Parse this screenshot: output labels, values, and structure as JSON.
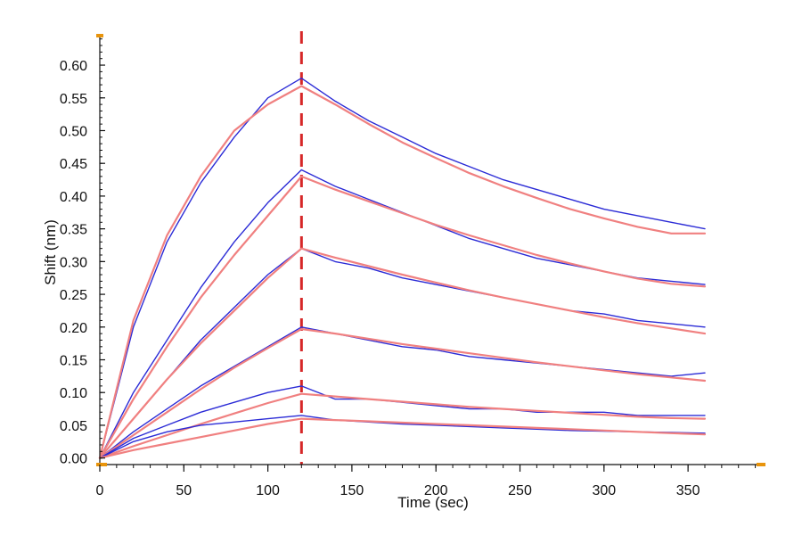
{
  "chart_data": {
    "type": "line",
    "xlabel": "Time (sec)",
    "ylabel": "Shift (nm)",
    "xlim": [
      0,
      395
    ],
    "ylim": [
      -0.01,
      0.645
    ],
    "x_ticks": [
      0,
      50,
      100,
      150,
      200,
      250,
      300,
      350
    ],
    "x_tick_labels": [
      "0",
      "50",
      "100",
      "150",
      "200",
      "250",
      "300",
      "350"
    ],
    "y_ticks": [
      0.0,
      0.05,
      0.1,
      0.15,
      0.2,
      0.25,
      0.3,
      0.35,
      0.4,
      0.45,
      0.5,
      0.55,
      0.6
    ],
    "y_tick_labels": [
      "0.00",
      "0.05",
      "0.10",
      "0.15",
      "0.20",
      "0.25",
      "0.30",
      "0.35",
      "0.40",
      "0.45",
      "0.50",
      "0.55",
      "0.60"
    ],
    "x_minor_step": 10,
    "y_minor_step": 0.01,
    "grid": false,
    "marker_line": {
      "x": 120,
      "color": "#d62728",
      "style": "dashed"
    },
    "colors": {
      "data": "#2b2bd6",
      "fit": "#f08080",
      "axis": "#111111",
      "axis_end_marks": "#e8940c"
    },
    "series": [
      {
        "role": "data",
        "x": [
          0,
          20,
          40,
          60,
          80,
          100,
          120,
          140,
          160,
          180,
          200,
          220,
          240,
          260,
          280,
          300,
          320,
          340,
          360
        ],
        "y": [
          0.0,
          0.2,
          0.33,
          0.42,
          0.49,
          0.55,
          0.58,
          0.545,
          0.515,
          0.49,
          0.465,
          0.445,
          0.425,
          0.41,
          0.395,
          0.38,
          0.37,
          0.36,
          0.35
        ]
      },
      {
        "role": "fit",
        "x": [
          0,
          20,
          40,
          60,
          80,
          100,
          120,
          140,
          160,
          180,
          200,
          220,
          240,
          260,
          280,
          300,
          320,
          340,
          360
        ],
        "y": [
          0.0,
          0.21,
          0.34,
          0.43,
          0.5,
          0.54,
          0.568,
          0.54,
          0.51,
          0.482,
          0.458,
          0.435,
          0.415,
          0.397,
          0.38,
          0.366,
          0.353,
          0.343,
          0.343
        ]
      },
      {
        "role": "data",
        "x": [
          0,
          20,
          40,
          60,
          80,
          100,
          120,
          140,
          160,
          180,
          200,
          220,
          240,
          260,
          280,
          300,
          320,
          340,
          360
        ],
        "y": [
          0.0,
          0.1,
          0.18,
          0.26,
          0.33,
          0.39,
          0.44,
          0.415,
          0.395,
          0.375,
          0.355,
          0.335,
          0.32,
          0.305,
          0.295,
          0.285,
          0.275,
          0.27,
          0.265
        ]
      },
      {
        "role": "fit",
        "x": [
          0,
          20,
          40,
          60,
          80,
          100,
          120,
          140,
          160,
          180,
          200,
          220,
          240,
          260,
          280,
          300,
          320,
          340,
          360
        ],
        "y": [
          0.0,
          0.09,
          0.17,
          0.245,
          0.31,
          0.37,
          0.43,
          0.41,
          0.392,
          0.374,
          0.356,
          0.34,
          0.325,
          0.31,
          0.297,
          0.285,
          0.274,
          0.266,
          0.262
        ]
      },
      {
        "role": "data",
        "x": [
          0,
          20,
          40,
          60,
          80,
          100,
          120,
          140,
          160,
          180,
          200,
          220,
          240,
          260,
          280,
          300,
          320,
          340,
          360
        ],
        "y": [
          0.0,
          0.06,
          0.12,
          0.18,
          0.23,
          0.28,
          0.32,
          0.3,
          0.29,
          0.275,
          0.265,
          0.255,
          0.245,
          0.235,
          0.225,
          0.22,
          0.21,
          0.205,
          0.2
        ]
      },
      {
        "role": "fit",
        "x": [
          0,
          20,
          40,
          60,
          80,
          100,
          120,
          140,
          160,
          180,
          200,
          220,
          240,
          260,
          280,
          300,
          320,
          340,
          360
        ],
        "y": [
          0.0,
          0.06,
          0.12,
          0.175,
          0.225,
          0.275,
          0.32,
          0.306,
          0.293,
          0.28,
          0.268,
          0.256,
          0.245,
          0.235,
          0.225,
          0.215,
          0.206,
          0.198,
          0.19
        ]
      },
      {
        "role": "data",
        "x": [
          0,
          20,
          40,
          60,
          80,
          100,
          120,
          140,
          160,
          180,
          200,
          220,
          240,
          260,
          280,
          300,
          320,
          340,
          360
        ],
        "y": [
          0.0,
          0.04,
          0.075,
          0.11,
          0.14,
          0.17,
          0.2,
          0.19,
          0.18,
          0.17,
          0.165,
          0.155,
          0.15,
          0.145,
          0.14,
          0.135,
          0.13,
          0.125,
          0.13
        ]
      },
      {
        "role": "fit",
        "x": [
          0,
          20,
          40,
          60,
          80,
          100,
          120,
          140,
          160,
          180,
          200,
          220,
          240,
          260,
          280,
          300,
          320,
          340,
          360
        ],
        "y": [
          0.0,
          0.035,
          0.07,
          0.105,
          0.138,
          0.168,
          0.197,
          0.19,
          0.182,
          0.174,
          0.167,
          0.16,
          0.153,
          0.146,
          0.14,
          0.134,
          0.128,
          0.123,
          0.118
        ]
      },
      {
        "role": "data",
        "x": [
          0,
          20,
          40,
          60,
          80,
          100,
          120,
          140,
          160,
          180,
          200,
          220,
          240,
          260,
          280,
          300,
          320,
          340,
          360
        ],
        "y": [
          0.0,
          0.03,
          0.05,
          0.07,
          0.085,
          0.1,
          0.11,
          0.09,
          0.09,
          0.085,
          0.08,
          0.075,
          0.075,
          0.07,
          0.07,
          0.07,
          0.065,
          0.065,
          0.065
        ]
      },
      {
        "role": "fit",
        "x": [
          0,
          20,
          40,
          60,
          80,
          100,
          120,
          140,
          160,
          180,
          200,
          220,
          240,
          260,
          280,
          300,
          320,
          340,
          360
        ],
        "y": [
          0.0,
          0.018,
          0.035,
          0.052,
          0.068,
          0.084,
          0.098,
          0.094,
          0.09,
          0.086,
          0.082,
          0.078,
          0.075,
          0.072,
          0.069,
          0.066,
          0.063,
          0.061,
          0.06
        ]
      },
      {
        "role": "data",
        "x": [
          0,
          20,
          40,
          60,
          80,
          100,
          120,
          140,
          160,
          180,
          200,
          220,
          240,
          260,
          280,
          300,
          320,
          340,
          360
        ],
        "y": [
          0.0,
          0.025,
          0.04,
          0.05,
          0.055,
          0.06,
          0.065,
          0.058,
          0.055,
          0.052,
          0.05,
          0.048,
          0.046,
          0.044,
          0.042,
          0.041,
          0.04,
          0.039,
          0.038
        ]
      },
      {
        "role": "fit",
        "x": [
          0,
          20,
          40,
          60,
          80,
          100,
          120,
          140,
          160,
          180,
          200,
          220,
          240,
          260,
          280,
          300,
          320,
          340,
          360
        ],
        "y": [
          0.0,
          0.012,
          0.022,
          0.032,
          0.042,
          0.052,
          0.06,
          0.058,
          0.056,
          0.054,
          0.052,
          0.05,
          0.048,
          0.046,
          0.044,
          0.042,
          0.04,
          0.038,
          0.036
        ]
      }
    ]
  }
}
